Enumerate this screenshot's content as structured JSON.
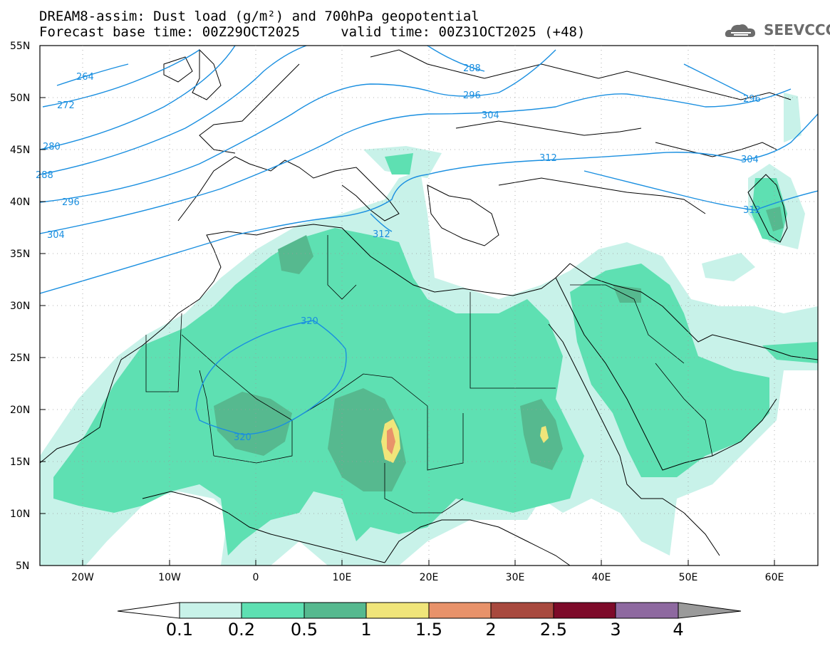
{
  "header": {
    "title_line1": "DREAM8-assim: Dust load (g/m²) and 700hPa geopotential",
    "title_line2": "Forecast base time: 00Z29OCT2025     valid time: 00Z31OCT2025 (+48)",
    "logo_text": "SEEVCCC"
  },
  "map_data": {
    "type": "map",
    "extent": {
      "lon": [
        -25,
        65
      ],
      "lat": [
        5,
        55
      ]
    },
    "lat_ticks": [
      "55N",
      "50N",
      "45N",
      "40N",
      "35N",
      "30N",
      "25N",
      "20N",
      "15N",
      "10N",
      "5N"
    ],
    "lon_ticks": [
      "20W",
      "10W",
      "0",
      "10E",
      "20E",
      "30E",
      "40E",
      "50E",
      "60E"
    ],
    "contour_labels": [
      "264",
      "272",
      "280",
      "288",
      "296",
      "304",
      "288",
      "296",
      "304",
      "312",
      "296",
      "304",
      "312",
      "312",
      "320",
      "320"
    ]
  },
  "colorbar": {
    "labels": [
      "0.1",
      "0.2",
      "0.5",
      "1",
      "1.5",
      "2",
      "2.5",
      "3",
      "4"
    ],
    "colors": [
      "#ffffff",
      "#c8f2e9",
      "#5ee0b2",
      "#56b98f",
      "#f0e57a",
      "#e8926a",
      "#a8493e",
      "#7d0a29",
      "#8e69a0",
      "#9a9a9a"
    ]
  },
  "colors": {
    "contour": "#1a8fe0",
    "dust_0_1": "#c8f2e9",
    "dust_0_2": "#5ee0b2",
    "dust_0_5": "#56b98f",
    "dust_1": "#f0e57a",
    "dust_1_5": "#e8926a"
  }
}
